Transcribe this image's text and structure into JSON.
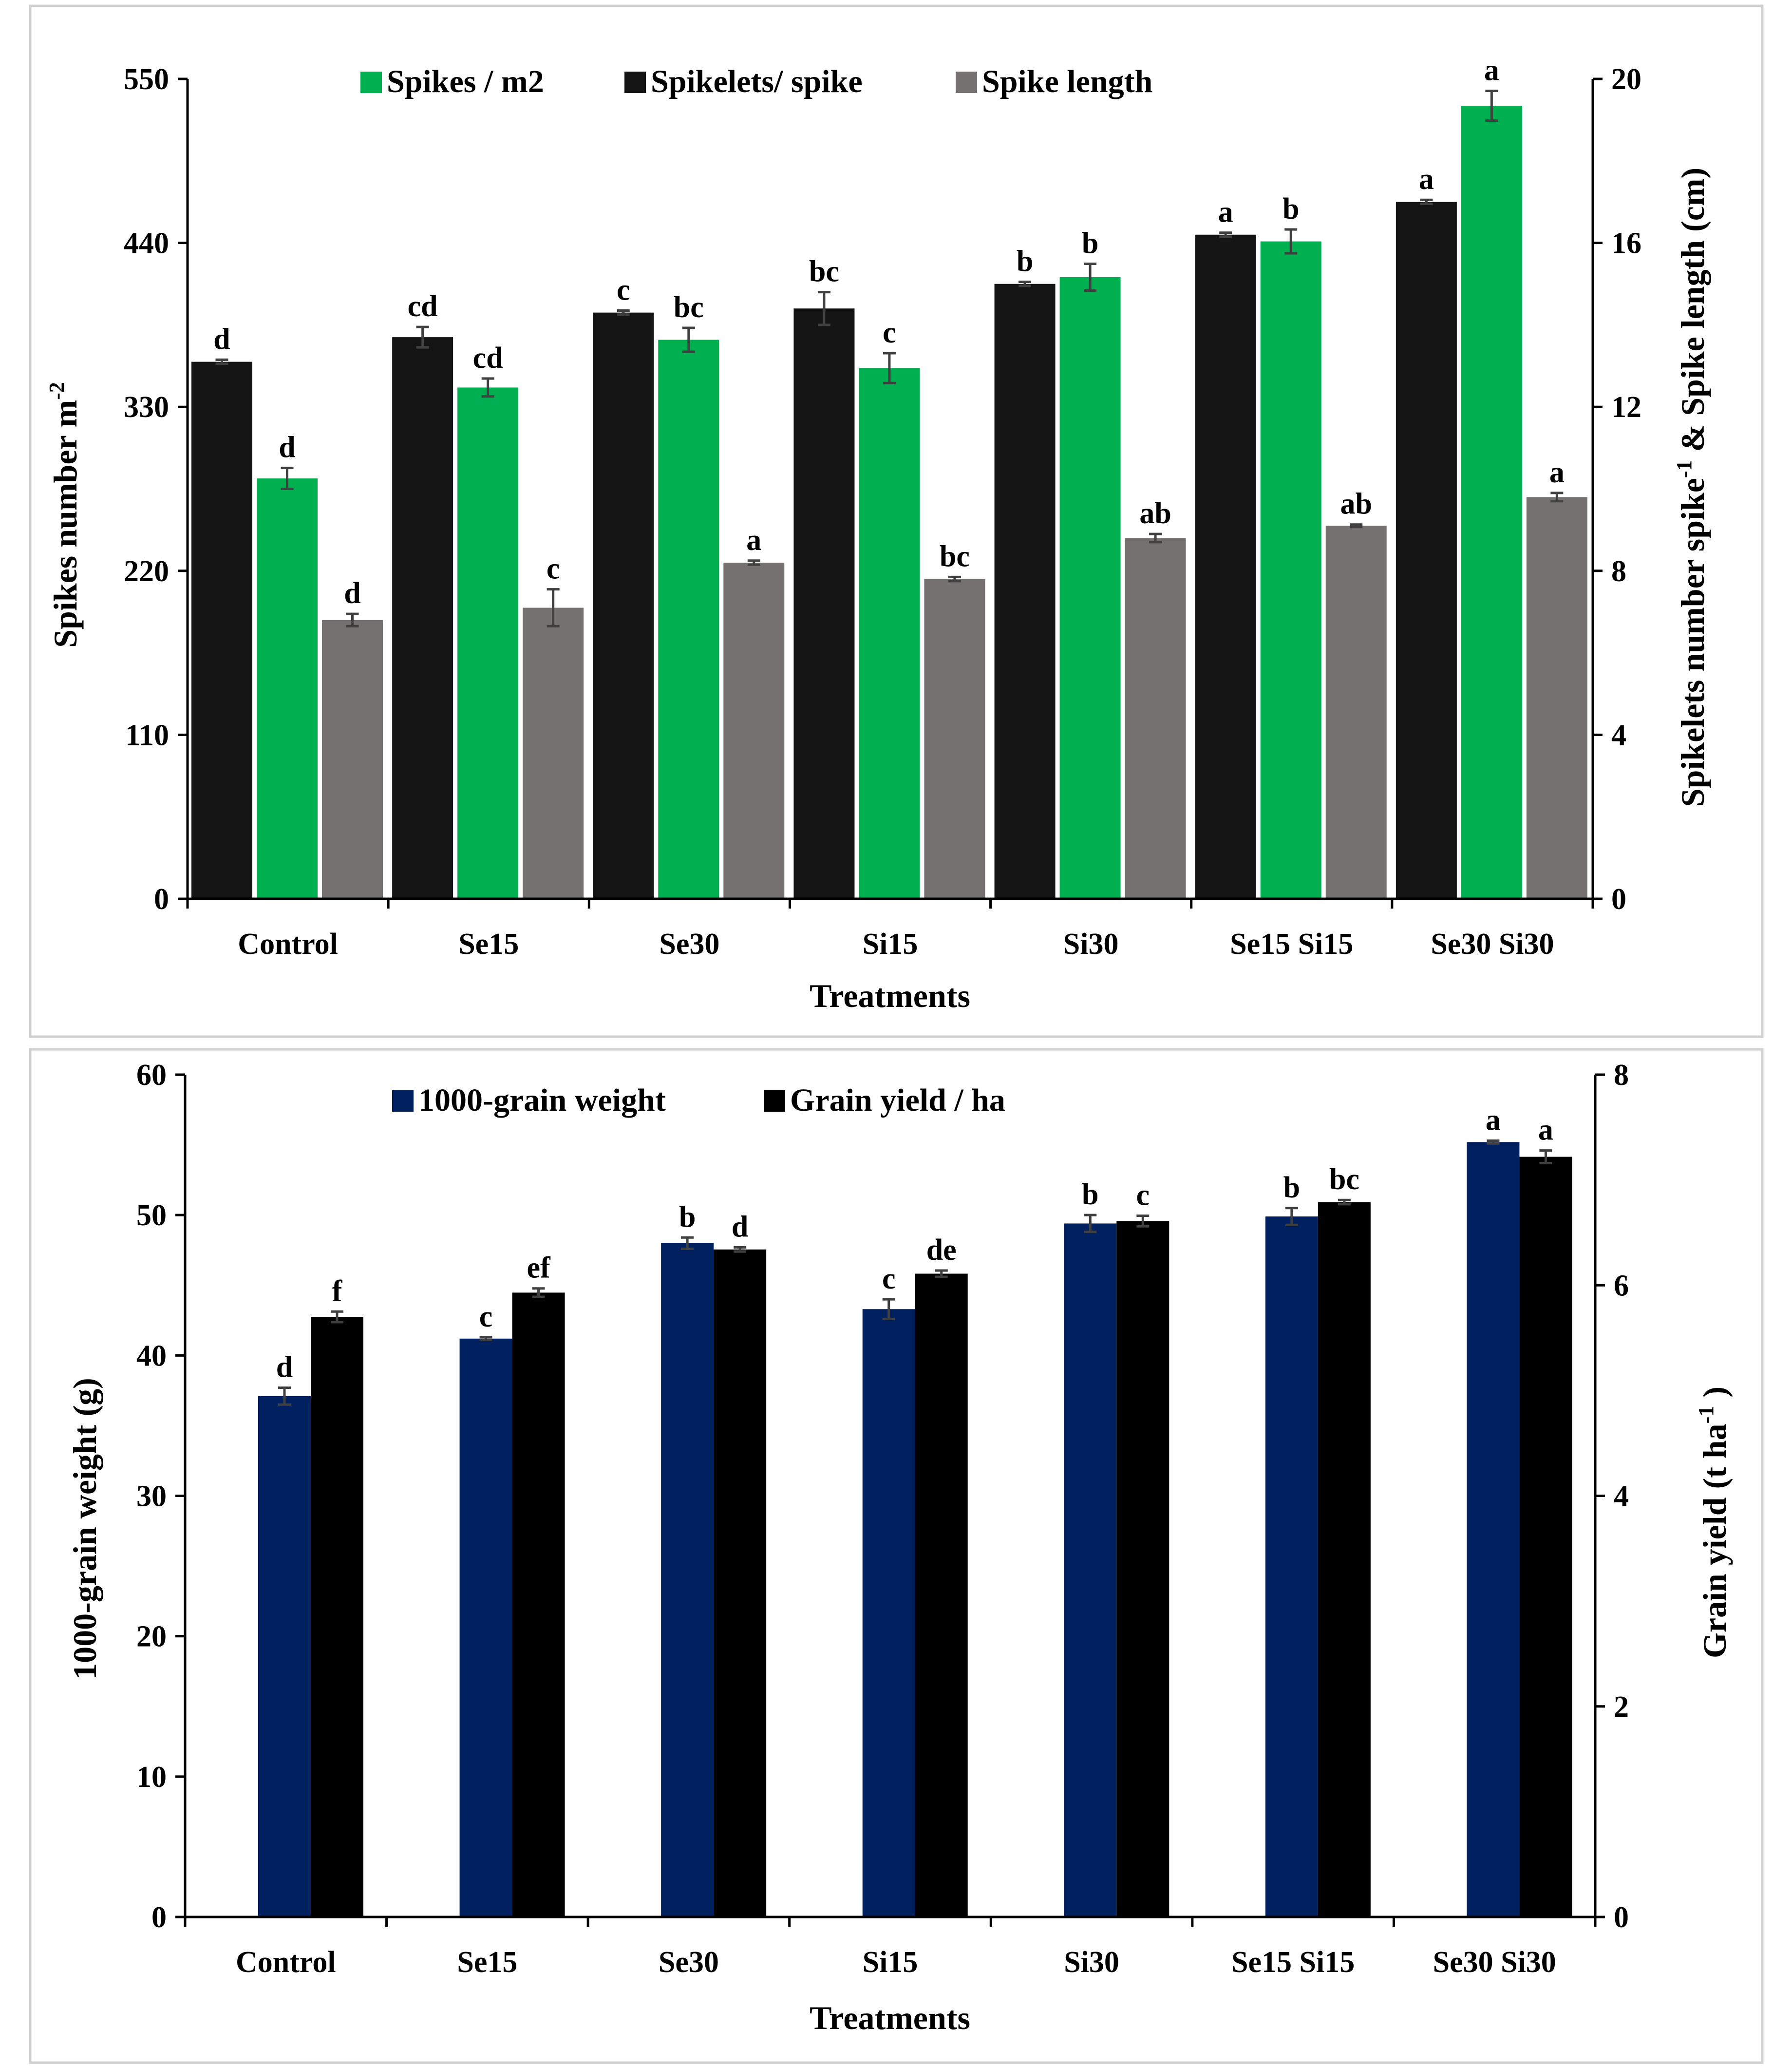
{
  "chart_data": [
    {
      "type": "bar",
      "xlabel": "Treatments",
      "ylabel": "Spikes number m",
      "ylabel_sup": "-2",
      "y2label_part1": "Spikelets number spike",
      "y2label_sup": "-1",
      "y2label_part2": " & Spike length (cm)",
      "ylim": [
        0,
        550
      ],
      "yticks": [
        "0",
        "110",
        "220",
        "330",
        "440",
        "550"
      ],
      "y2lim": [
        0,
        20
      ],
      "y2ticks": [
        "0",
        "4",
        "8",
        "12",
        "16",
        "20"
      ],
      "legend_position": "top",
      "categories": [
        "Control",
        "Se15",
        "Se30",
        "Si15",
        "Si30",
        "Se15 Si15",
        "Se30 Si30"
      ],
      "series": [
        {
          "name": "Spikelets/ spike",
          "axis": "right",
          "color": "#141414",
          "values": [
            13.1,
            13.7,
            14.3,
            14.4,
            15.0,
            16.2,
            17.0
          ],
          "errors": [
            0.05,
            0.25,
            0.05,
            0.4,
            0.05,
            0.05,
            0.05
          ],
          "letters": [
            "d",
            "cd",
            "c",
            "bc",
            "b",
            "a",
            "a"
          ]
        },
        {
          "name": "Spikes / m2",
          "axis": "left",
          "color": "#00b050",
          "values": [
            282,
            343,
            375,
            356,
            417,
            441,
            532
          ],
          "errors": [
            7,
            6,
            8,
            10,
            9,
            8,
            10
          ],
          "letters": [
            "d",
            "cd",
            "bc",
            "c",
            "b",
            "b",
            "a"
          ]
        },
        {
          "name": "Spike length",
          "axis": "right",
          "color": "#767171",
          "values": [
            6.8,
            7.1,
            8.2,
            7.8,
            8.8,
            9.1,
            9.8
          ],
          "errors": [
            0.15,
            0.45,
            0.05,
            0.05,
            0.1,
            0.03,
            0.1
          ],
          "letters": [
            "d",
            "c",
            "a",
            "bc",
            "ab",
            "ab",
            "a"
          ]
        }
      ]
    },
    {
      "type": "bar",
      "xlabel": "Treatments",
      "ylabel": "1000-grain weight (g)",
      "y2label": "Grain yield (t ha",
      "y2label_sup": "-1",
      "y2label_end": " )",
      "ylim": [
        0,
        60
      ],
      "yticks": [
        "0",
        "10",
        "20",
        "30",
        "40",
        "50",
        "60"
      ],
      "y2lim": [
        0,
        8
      ],
      "y2ticks": [
        "0",
        "2",
        "4",
        "6",
        "8"
      ],
      "legend_position": "top",
      "categories": [
        "Control",
        "Se15",
        "Se30",
        "Si15",
        "Si30",
        "Se15 Si15",
        "Se30 Si30"
      ],
      "series": [
        {
          "name": "1000-grain weight",
          "axis": "left",
          "color": "#002060",
          "values": [
            37.1,
            41.2,
            48.0,
            43.3,
            49.4,
            49.9,
            55.2
          ],
          "errors": [
            0.6,
            0.1,
            0.4,
            0.7,
            0.6,
            0.6,
            0.1
          ],
          "letters": [
            "d",
            "c",
            "b",
            "c",
            "b",
            "b",
            "a"
          ]
        },
        {
          "name": "Grain yield / ha",
          "axis": "right",
          "color": "#000000",
          "values": [
            5.7,
            5.93,
            6.34,
            6.11,
            6.61,
            6.79,
            7.22
          ],
          "errors": [
            0.05,
            0.04,
            0.02,
            0.03,
            0.05,
            0.02,
            0.06
          ],
          "letters": [
            "f",
            "ef",
            "d",
            "de",
            "c",
            "bc",
            "a"
          ]
        }
      ]
    }
  ]
}
